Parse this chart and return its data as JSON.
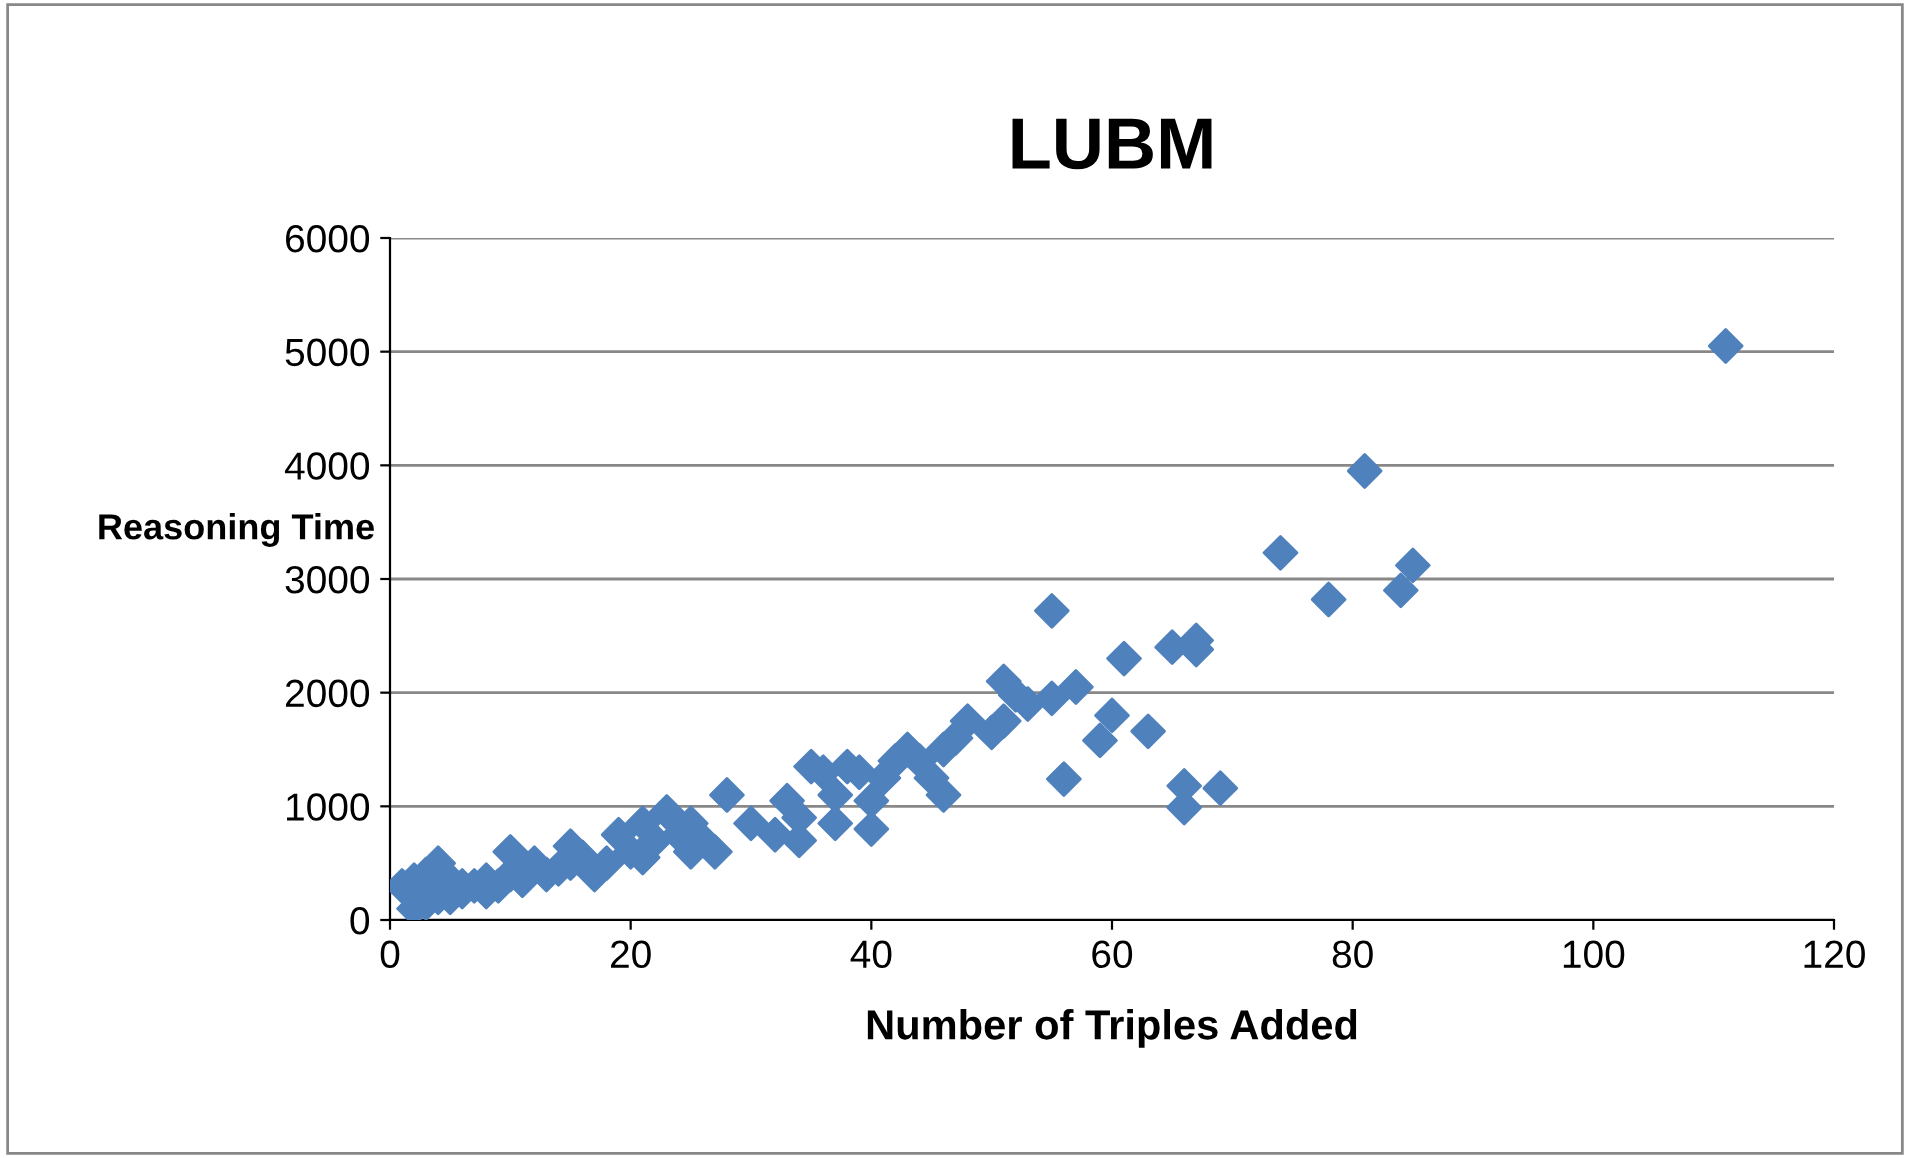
{
  "chart_data": {
    "type": "scatter",
    "title": "LUBM",
    "xlabel": "Number of Triples Added",
    "ylabel": "Reasoning Time",
    "series": [
      {
        "color": "#4f81bd",
        "x": [
          111,
          81,
          74,
          78,
          84,
          85,
          67,
          67,
          65,
          61,
          55,
          57,
          55,
          60,
          59,
          63,
          56,
          66,
          66,
          69,
          51,
          52,
          53,
          51,
          50,
          48,
          47,
          46,
          46,
          45,
          44,
          43,
          42,
          41,
          40,
          40,
          39,
          38,
          37,
          36,
          35,
          37,
          34,
          33,
          34,
          32,
          30,
          28,
          27,
          25,
          25,
          23,
          22,
          21,
          21,
          20,
          19,
          18,
          17,
          15,
          15,
          14,
          13,
          12,
          11,
          10,
          10,
          9,
          8,
          7,
          6,
          5,
          4,
          4,
          3,
          3,
          2,
          1,
          2,
          5,
          6,
          8,
          16,
          24,
          26
        ],
        "values": [
          5050,
          3950,
          3230,
          2820,
          2900,
          3120,
          2460,
          2380,
          2400,
          2300,
          2720,
          2050,
          1950,
          1800,
          1580,
          1660,
          1240,
          1180,
          990,
          1160,
          2100,
          1980,
          1900,
          1750,
          1650,
          1750,
          1600,
          1500,
          1100,
          1250,
          1400,
          1500,
          1400,
          1250,
          1050,
          800,
          1300,
          1350,
          1100,
          1300,
          1350,
          850,
          900,
          1050,
          700,
          750,
          850,
          1100,
          600,
          600,
          850,
          950,
          700,
          850,
          550,
          600,
          750,
          500,
          400,
          650,
          500,
          450,
          400,
          500,
          350,
          600,
          400,
          300,
          250,
          300,
          250,
          350,
          500,
          200,
          400,
          150,
          350,
          300,
          100,
          200,
          300,
          350,
          550,
          750,
          700
        ]
      }
    ],
    "xlim": [
      0,
      120
    ],
    "xticks": [
      0,
      20,
      40,
      60,
      80,
      100,
      120
    ],
    "ylim": [
      0,
      6000
    ],
    "yticks": [
      0,
      1000,
      2000,
      3000,
      4000,
      5000,
      6000
    ],
    "grid": "y",
    "marker": "diamond",
    "legend": false
  }
}
